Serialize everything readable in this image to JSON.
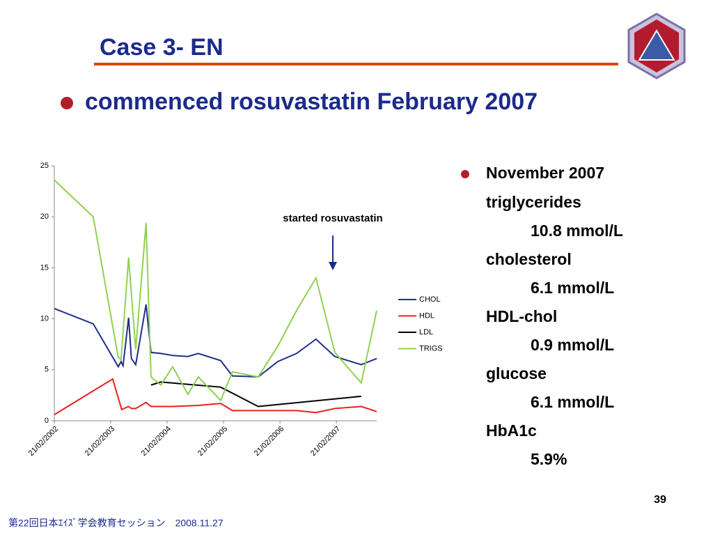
{
  "slide": {
    "title": "Case 3- EN",
    "bullet": "commenced rosuvastatin February 2007",
    "heading": "November 2007",
    "results": [
      {
        "name": "triglycerides",
        "value": "10.8 mmol/L"
      },
      {
        "name": "cholesterol",
        "value": "6.1 mmol/L"
      },
      {
        "name": "HDL-chol",
        "value": "0.9 mmol/L"
      },
      {
        "name": "glucose",
        "value": "6.1 mmol/L"
      },
      {
        "name": "HbA1c",
        "value": "5.9%"
      }
    ],
    "page_number": "39",
    "footer": "第22回日本ｴｲｽﾞ学会教育セッション　2008.11.27"
  },
  "chart_data": {
    "type": "line",
    "annotation": "started rosuvastatin",
    "xlim": [
      "2002-02-21",
      "2007-11-09"
    ],
    "xticks": [
      {
        "value": "2002-02-21",
        "label": "21/02/2002"
      },
      {
        "value": "2003-02-21",
        "label": "21/02/2003"
      },
      {
        "value": "2004-02-21",
        "label": "21/02/2004"
      },
      {
        "value": "2005-02-21",
        "label": "21/02/2005"
      },
      {
        "value": "2006-02-21",
        "label": "21/02/2006"
      },
      {
        "value": "2007-02-21",
        "label": "21/02/2007"
      }
    ],
    "ylim": [
      0,
      25
    ],
    "yticks": [
      0,
      5,
      10,
      15,
      20,
      25
    ],
    "grid": false,
    "legend": "right",
    "series": [
      {
        "name": "CHOL",
        "color": "#1f2f8a",
        "x": [
          "2002-02-21",
          "2002-10-31",
          "2003-04-11",
          "2003-04-29",
          "2003-05-12",
          "2003-06-17",
          "2003-07-05",
          "2003-08-02",
          "2003-10-08",
          "2003-11-09",
          "2004-01-11",
          "2004-03-28",
          "2004-07-05",
          "2004-09-10",
          "2005-02-02",
          "2005-04-19",
          "2005-10-03",
          "2006-02-06",
          "2006-06-08",
          "2006-10-12",
          "2007-02-11",
          "2007-08-01",
          "2007-11-09"
        ],
        "values": [
          11.0,
          9.5,
          5.3,
          5.8,
          5.4,
          10.1,
          6.1,
          5.5,
          11.4,
          6.7,
          6.6,
          6.4,
          6.3,
          6.6,
          5.9,
          4.4,
          4.3,
          5.8,
          6.6,
          8.0,
          6.3,
          5.5,
          6.1
        ]
      },
      {
        "name": "HDL",
        "color": "#e8201c",
        "x": [
          "2002-02-21",
          "2003-03-06",
          "2003-05-03",
          "2003-06-17",
          "2003-07-05",
          "2003-08-02",
          "2003-10-08",
          "2003-11-09",
          "2004-01-11",
          "2004-03-28",
          "2004-09-10",
          "2005-02-02",
          "2005-04-19",
          "2005-10-03",
          "2006-06-08",
          "2006-10-12",
          "2007-02-11",
          "2007-08-01",
          "2007-11-09"
        ],
        "values": [
          0.6,
          4.1,
          1.1,
          1.4,
          1.2,
          1.2,
          1.8,
          1.4,
          1.4,
          1.4,
          1.5,
          1.7,
          1.0,
          1.0,
          1.0,
          0.8,
          1.2,
          1.4,
          0.9
        ]
      },
      {
        "name": "LDL",
        "color": "#000000",
        "x": [
          "2003-11-09",
          "2004-01-11",
          "2005-02-02",
          "2005-10-03",
          "2007-08-01"
        ],
        "values": [
          3.5,
          3.8,
          3.3,
          1.4,
          2.4
        ]
      },
      {
        "name": "TRIGS",
        "color": "#8fd14f",
        "x": [
          "2002-02-21",
          "2002-10-31",
          "2003-04-11",
          "2003-04-29",
          "2003-06-17",
          "2003-08-02",
          "2003-10-08",
          "2003-11-09",
          "2004-01-11",
          "2004-03-28",
          "2004-07-05",
          "2004-09-10",
          "2005-02-02",
          "2005-04-19",
          "2005-10-03",
          "2006-02-06",
          "2006-06-08",
          "2006-10-12",
          "2007-02-11",
          "2007-08-01",
          "2007-11-09"
        ],
        "values": [
          23.6,
          20.0,
          6.2,
          6.0,
          16.0,
          7.0,
          19.4,
          4.3,
          3.5,
          5.3,
          2.6,
          4.3,
          2.0,
          4.8,
          4.3,
          7.3,
          10.8,
          14.0,
          6.7,
          3.7,
          10.8
        ]
      }
    ]
  }
}
